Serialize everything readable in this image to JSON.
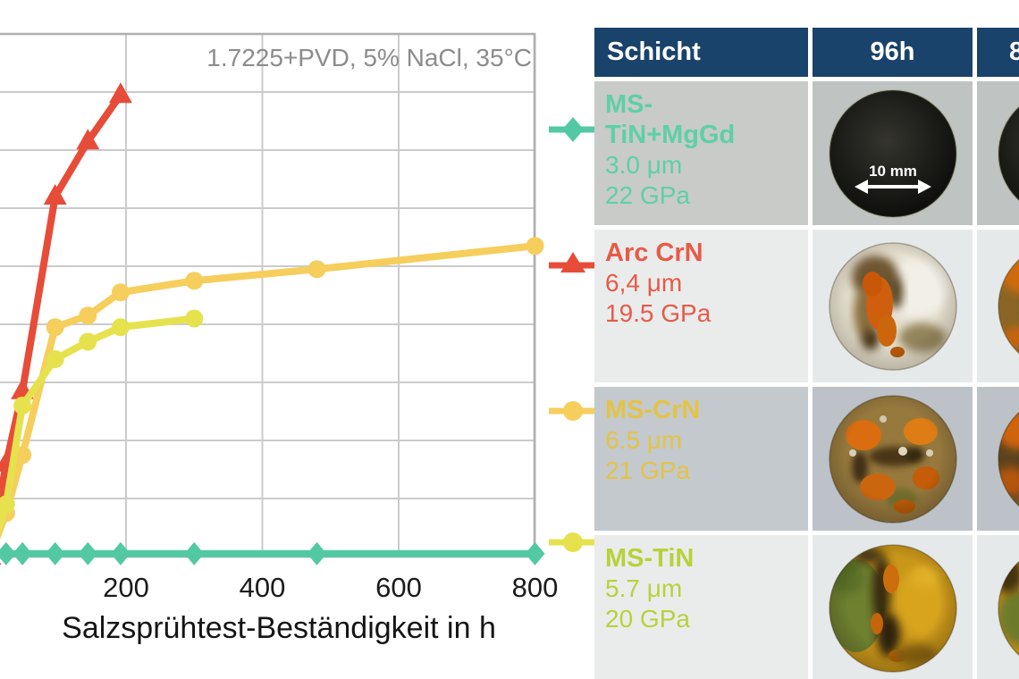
{
  "chart_data": {
    "type": "line",
    "annotation": "1.7225+PVD, 5% NaCl, 35°C",
    "xlabel": "Salzsprühtest-Beständigkeit in h",
    "x_unit": "h",
    "xlim": [
      0,
      810
    ],
    "x_ticks": [
      200,
      400,
      600,
      800
    ],
    "ylabel": "",
    "ylim": [
      0,
      9
    ],
    "grid": true,
    "legend_position": "right",
    "series": [
      {
        "name": "Arc CrN",
        "color": "#e74c38",
        "marker": "triangle",
        "x": [
          0,
          24,
          48,
          96,
          144,
          192
        ],
        "y": [
          0,
          1.6,
          2.85,
          6.2,
          7.15,
          7.95
        ]
      },
      {
        "name": "MS-CrN",
        "color": "#f6ce5c",
        "marker": "circle",
        "x": [
          0,
          24,
          48,
          96,
          144,
          192,
          300,
          480,
          800
        ],
        "y": [
          0,
          0.75,
          1.75,
          3.95,
          4.15,
          4.55,
          4.75,
          4.95,
          5.35
        ]
      },
      {
        "name": "MS-TiN",
        "color": "#e6e24e",
        "marker": "circle",
        "x": [
          0,
          24,
          48,
          96,
          144,
          192,
          300
        ],
        "y": [
          0,
          0.9,
          2.6,
          3.4,
          3.7,
          3.95,
          4.1
        ]
      },
      {
        "name": "MS-TiN+MgGd",
        "color": "#52c9a3",
        "marker": "diamond",
        "x": [
          0,
          24,
          48,
          96,
          144,
          192,
          300,
          480,
          800
        ],
        "y": [
          0.05,
          0.05,
          0.05,
          0.05,
          0.05,
          0.05,
          0.05,
          0.05,
          0.05
        ]
      }
    ]
  },
  "table": {
    "columns": [
      "Schicht",
      "96h",
      "8"
    ],
    "header_bg": "#1a436b",
    "scale_label": "10 mm",
    "rows": [
      {
        "name": "MS-TiN+MgGd",
        "thickness": "3.0 μm",
        "hardness": "22 GPa",
        "color": "#5ecfa9"
      },
      {
        "name": "Arc CrN",
        "thickness": "6,4 μm",
        "hardness": "19.5 GPa",
        "color": "#e85a47"
      },
      {
        "name": "MS-CrN",
        "thickness": "6.5 μm",
        "hardness": "21 GPa",
        "color": "#e3c445"
      },
      {
        "name": "MS-TiN",
        "thickness": "5.7 μm",
        "hardness": "20 GPa",
        "color": "#b6d23c"
      }
    ]
  }
}
